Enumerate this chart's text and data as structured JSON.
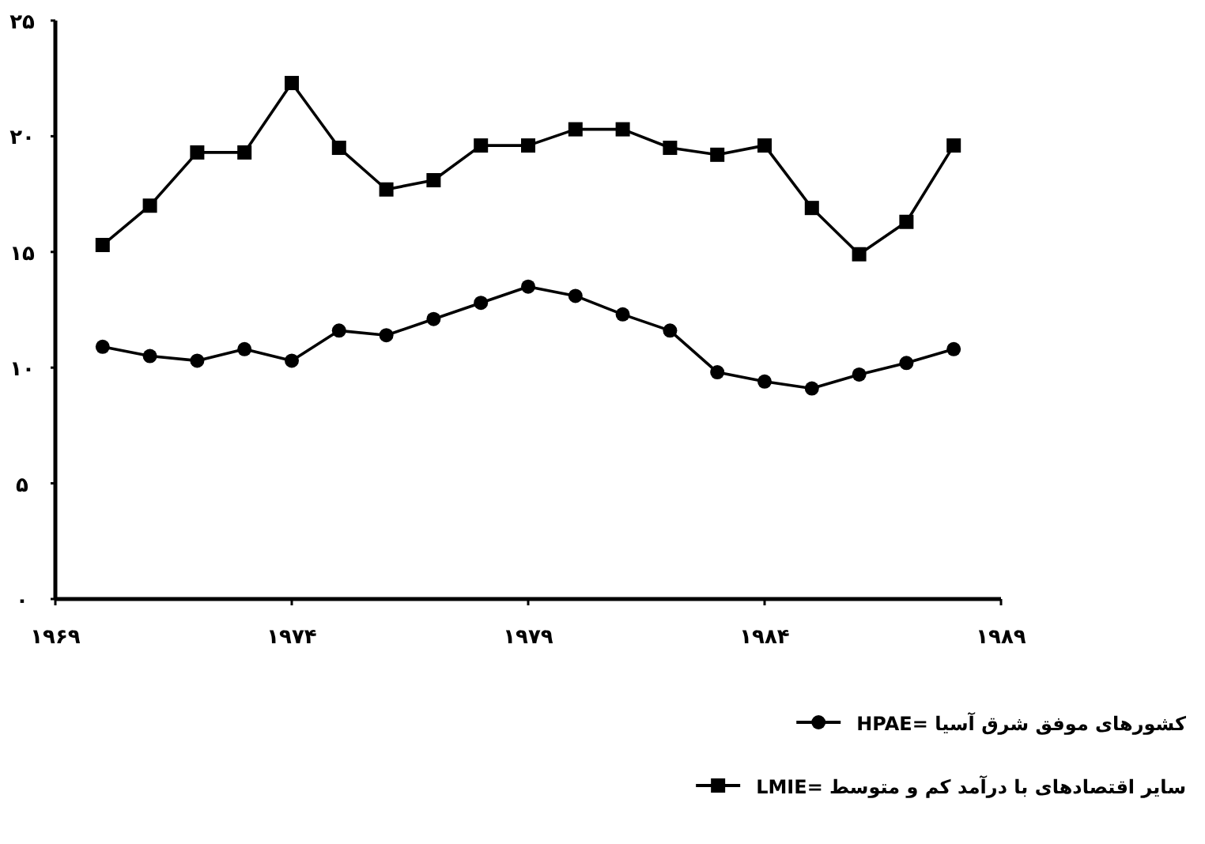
{
  "chart_data": {
    "type": "line",
    "x": [
      1970,
      1971,
      1972,
      1973,
      1974,
      1975,
      1976,
      1977,
      1978,
      1979,
      1980,
      1981,
      1982,
      1983,
      1984,
      1985,
      1986,
      1987,
      1988
    ],
    "series": [
      {
        "name": "کشورهای موفق شرق آسیا =HPAE",
        "color": "#000000",
        "marker": "circle",
        "values": [
          10.9,
          10.5,
          10.3,
          10.8,
          10.3,
          11.6,
          11.4,
          12.1,
          12.8,
          13.5,
          13.1,
          12.3,
          11.6,
          9.8,
          9.4,
          9.1,
          9.7,
          10.2,
          10.8
        ]
      },
      {
        "name": "سایر اقتصادهای با درآمد کم و متوسط =LMIE",
        "color": "#000000",
        "marker": "square",
        "values": [
          15.3,
          17.0,
          19.3,
          19.3,
          22.3,
          19.5,
          17.7,
          18.1,
          19.6,
          19.6,
          20.3,
          20.3,
          19.5,
          19.2,
          19.6,
          16.9,
          14.9,
          16.3,
          19.6
        ]
      }
    ],
    "xlim": [
      1969,
      1989
    ],
    "ylim": [
      0,
      25
    ],
    "xticks": [
      {
        "value": 1969,
        "label": "۱۹۶۹"
      },
      {
        "value": 1974,
        "label": "۱۹۷۴"
      },
      {
        "value": 1979,
        "label": "۱۹۷۹"
      },
      {
        "value": 1984,
        "label": "۱۹۸۴"
      },
      {
        "value": 1989,
        "label": "۱۹۸۹"
      }
    ],
    "yticks": [
      {
        "value": 0,
        "label": "۰"
      },
      {
        "value": 5,
        "label": "۵"
      },
      {
        "value": 10,
        "label": "۱۰"
      },
      {
        "value": 15,
        "label": "۱۵"
      },
      {
        "value": 20,
        "label": "۲۰"
      },
      {
        "value": 25,
        "label": "۲۵"
      }
    ],
    "grid": false,
    "legend": "bottom right",
    "line_style": "solid"
  }
}
